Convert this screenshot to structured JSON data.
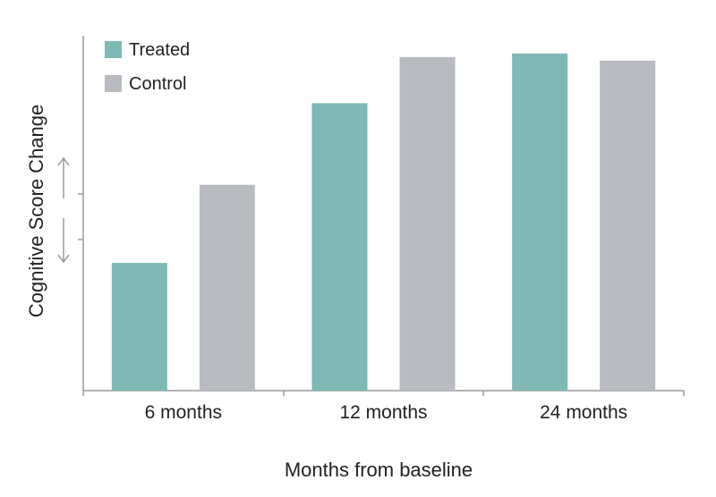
{
  "chart_data": {
    "type": "bar",
    "title": "",
    "xlabel": "Months from baseline",
    "ylabel": "Cognitive Score Change",
    "categories": [
      "6 months",
      "12 months",
      "24 months"
    ],
    "series": [
      {
        "name": "Treated",
        "color": "#7fb8b4",
        "values": [
          36,
          81,
          95
        ]
      },
      {
        "name": "Control",
        "color": "#b8bcc0",
        "values": [
          58,
          94,
          93
        ]
      }
    ],
    "ylim": [
      0,
      100
    ],
    "y_axis_ticks_labeled": false,
    "y_axis_annotation": "up-down arrows",
    "grid": false,
    "legend_position": "top-left"
  }
}
